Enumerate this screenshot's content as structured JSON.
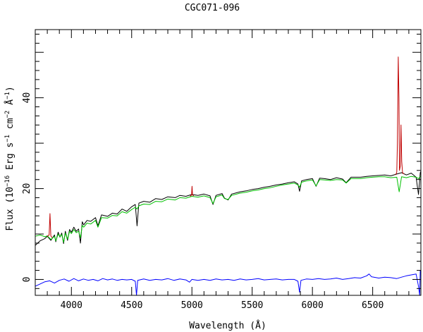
{
  "chart_data": {
    "type": "line",
    "title": "CGC071-096",
    "xlabel": "Wavelength (Å)",
    "ylabel": {
      "prefix": "Flux (10",
      "exp1": "−16",
      "mid1": " Erg s",
      "exp2": "−1",
      "mid2": " cm",
      "exp3": "−2",
      "mid3": " Å",
      "exp4": "−1",
      "suffix": ")"
    },
    "xlim": [
      3700,
      6900
    ],
    "ylim": [
      -3.5,
      55
    ],
    "x_ticks": [
      4000,
      4500,
      5000,
      5500,
      6000,
      6500
    ],
    "y_ticks": [
      0,
      20,
      40
    ],
    "series": [
      {
        "color": "#000000",
        "points": [
          [
            3700,
            7.5
          ],
          [
            3740,
            8.5
          ],
          [
            3780,
            9.0
          ],
          [
            3800,
            9.5
          ],
          [
            3830,
            8.6
          ],
          [
            3860,
            9.8
          ],
          [
            3870,
            8.3
          ],
          [
            3890,
            10.4
          ],
          [
            3905,
            9.3
          ],
          [
            3920,
            10.2
          ],
          [
            3935,
            7.9
          ],
          [
            3950,
            10.6
          ],
          [
            3968,
            8.6
          ],
          [
            3985,
            11.0
          ],
          [
            4000,
            10.4
          ],
          [
            4020,
            11.5
          ],
          [
            4040,
            10.6
          ],
          [
            4060,
            11.1
          ],
          [
            4075,
            8.0
          ],
          [
            4090,
            12.7
          ],
          [
            4102,
            12.0
          ],
          [
            4130,
            13.0
          ],
          [
            4160,
            12.8
          ],
          [
            4200,
            13.6
          ],
          [
            4220,
            11.8
          ],
          [
            4250,
            14.2
          ],
          [
            4300,
            13.9
          ],
          [
            4340,
            14.6
          ],
          [
            4380,
            14.4
          ],
          [
            4420,
            15.5
          ],
          [
            4460,
            15.0
          ],
          [
            4500,
            16.0
          ],
          [
            4530,
            16.5
          ],
          [
            4545,
            11.8
          ],
          [
            4560,
            16.8
          ],
          [
            4600,
            17.2
          ],
          [
            4650,
            17.0
          ],
          [
            4700,
            17.8
          ],
          [
            4750,
            17.6
          ],
          [
            4800,
            18.2
          ],
          [
            4861,
            18.0
          ],
          [
            4900,
            18.5
          ],
          [
            4950,
            18.3
          ],
          [
            5000,
            18.7
          ],
          [
            5050,
            18.5
          ],
          [
            5100,
            18.8
          ],
          [
            5150,
            18.4
          ],
          [
            5175,
            16.5
          ],
          [
            5200,
            18.5
          ],
          [
            5250,
            18.9
          ],
          [
            5270,
            17.9
          ],
          [
            5300,
            17.5
          ],
          [
            5330,
            18.8
          ],
          [
            5400,
            19.3
          ],
          [
            5450,
            19.5
          ],
          [
            5500,
            19.8
          ],
          [
            5550,
            20.0
          ],
          [
            5600,
            20.3
          ],
          [
            5650,
            20.5
          ],
          [
            5700,
            20.8
          ],
          [
            5750,
            21.0
          ],
          [
            5800,
            21.3
          ],
          [
            5850,
            21.5
          ],
          [
            5880,
            21.0
          ],
          [
            5893,
            19.4
          ],
          [
            5910,
            21.7
          ],
          [
            5950,
            22.0
          ],
          [
            6000,
            22.2
          ],
          [
            6030,
            20.5
          ],
          [
            6060,
            22.3
          ],
          [
            6100,
            22.2
          ],
          [
            6150,
            22.0
          ],
          [
            6200,
            22.4
          ],
          [
            6250,
            22.1
          ],
          [
            6280,
            21.3
          ],
          [
            6320,
            22.5
          ],
          [
            6400,
            22.5
          ],
          [
            6450,
            22.7
          ],
          [
            6500,
            22.8
          ],
          [
            6550,
            22.9
          ],
          [
            6600,
            23.0
          ],
          [
            6650,
            22.8
          ],
          [
            6700,
            23.2
          ],
          [
            6740,
            23.5
          ],
          [
            6780,
            23.0
          ],
          [
            6820,
            23.4
          ],
          [
            6860,
            22.5
          ],
          [
            6880,
            18.7
          ],
          [
            6895,
            23.5
          ],
          [
            6900,
            23.8
          ]
        ]
      },
      {
        "color": "#00c000",
        "points": [
          [
            3700,
            9.5
          ],
          [
            3740,
            9.8
          ],
          [
            3780,
            9.4
          ],
          [
            3800,
            9.6
          ],
          [
            3830,
            8.8
          ],
          [
            3860,
            9.5
          ],
          [
            3870,
            8.5
          ],
          [
            3890,
            10.0
          ],
          [
            3905,
            9.4
          ],
          [
            3920,
            9.9
          ],
          [
            3935,
            8.2
          ],
          [
            3950,
            10.2
          ],
          [
            3968,
            8.9
          ],
          [
            3985,
            10.6
          ],
          [
            4000,
            10.1
          ],
          [
            4020,
            11.0
          ],
          [
            4040,
            10.3
          ],
          [
            4060,
            10.6
          ],
          [
            4075,
            9.2
          ],
          [
            4090,
            11.9
          ],
          [
            4102,
            11.5
          ],
          [
            4130,
            12.4
          ],
          [
            4160,
            12.2
          ],
          [
            4200,
            13.0
          ],
          [
            4220,
            11.5
          ],
          [
            4250,
            13.6
          ],
          [
            4300,
            13.5
          ],
          [
            4340,
            14.1
          ],
          [
            4380,
            14.0
          ],
          [
            4420,
            14.9
          ],
          [
            4460,
            14.6
          ],
          [
            4500,
            15.4
          ],
          [
            4530,
            15.9
          ],
          [
            4545,
            15.5
          ],
          [
            4560,
            16.2
          ],
          [
            4600,
            16.6
          ],
          [
            4650,
            16.5
          ],
          [
            4700,
            17.2
          ],
          [
            4750,
            17.1
          ],
          [
            4800,
            17.7
          ],
          [
            4861,
            17.5
          ],
          [
            4900,
            18.0
          ],
          [
            4950,
            17.9
          ],
          [
            5000,
            18.3
          ],
          [
            5050,
            18.1
          ],
          [
            5100,
            18.4
          ],
          [
            5150,
            18.0
          ],
          [
            5175,
            16.7
          ],
          [
            5200,
            18.2
          ],
          [
            5250,
            18.6
          ],
          [
            5270,
            17.8
          ],
          [
            5300,
            17.6
          ],
          [
            5330,
            18.5
          ],
          [
            5400,
            19.0
          ],
          [
            5450,
            19.2
          ],
          [
            5500,
            19.5
          ],
          [
            5550,
            19.7
          ],
          [
            5600,
            20.0
          ],
          [
            5650,
            20.2
          ],
          [
            5700,
            20.5
          ],
          [
            5750,
            20.8
          ],
          [
            5800,
            21.0
          ],
          [
            5850,
            21.2
          ],
          [
            5880,
            20.8
          ],
          [
            5893,
            20.3
          ],
          [
            5910,
            21.4
          ],
          [
            5950,
            21.7
          ],
          [
            6000,
            21.9
          ],
          [
            6030,
            20.6
          ],
          [
            6060,
            22.0
          ],
          [
            6100,
            21.9
          ],
          [
            6150,
            21.8
          ],
          [
            6200,
            22.0
          ],
          [
            6250,
            21.9
          ],
          [
            6280,
            21.2
          ],
          [
            6320,
            22.2
          ],
          [
            6400,
            22.2
          ],
          [
            6450,
            22.4
          ],
          [
            6500,
            22.5
          ],
          [
            6550,
            22.6
          ],
          [
            6600,
            22.6
          ],
          [
            6650,
            22.4
          ],
          [
            6700,
            22.5
          ],
          [
            6720,
            19.3
          ],
          [
            6740,
            22.6
          ],
          [
            6780,
            22.4
          ],
          [
            6820,
            22.7
          ],
          [
            6860,
            22.5
          ],
          [
            6880,
            22.2
          ],
          [
            6895,
            22.6
          ],
          [
            6900,
            22.7
          ]
        ]
      },
      {
        "color": "#c00000",
        "points": [
          [
            3800,
            9.5
          ],
          [
            3815,
            9.8
          ],
          [
            3822,
            14.5
          ],
          [
            3829,
            9.6
          ],
          [
            3840,
            9.2
          ]
        ],
        "gap_after": true
      },
      {
        "color": "#c00000",
        "points": [
          [
            4985,
            18.3
          ],
          [
            4997,
            18.6
          ],
          [
            5001,
            20.5
          ],
          [
            5005,
            18.6
          ],
          [
            5015,
            18.4
          ]
        ]
      },
      {
        "color": "#c00000",
        "points": [
          [
            6690,
            23.0
          ],
          [
            6700,
            23.6
          ],
          [
            6705,
            30.0
          ],
          [
            6712,
            49.0
          ],
          [
            6718,
            40.0
          ],
          [
            6722,
            24.0
          ],
          [
            6730,
            25.0
          ],
          [
            6735,
            34.0
          ],
          [
            6741,
            26.0
          ],
          [
            6748,
            23.5
          ],
          [
            6760,
            23.2
          ]
        ]
      },
      {
        "color": "#0000ff",
        "points": [
          [
            3700,
            -1.5
          ],
          [
            3740,
            -1.0
          ],
          [
            3780,
            -0.5
          ],
          [
            3820,
            -0.3
          ],
          [
            3860,
            -0.8
          ],
          [
            3900,
            -0.2
          ],
          [
            3940,
            0.1
          ],
          [
            3980,
            -0.4
          ],
          [
            4020,
            0.2
          ],
          [
            4060,
            -0.3
          ],
          [
            4100,
            0.1
          ],
          [
            4140,
            -0.2
          ],
          [
            4180,
            0.0
          ],
          [
            4220,
            -0.3
          ],
          [
            4260,
            0.2
          ],
          [
            4300,
            -0.1
          ],
          [
            4340,
            0.1
          ],
          [
            4380,
            -0.2
          ],
          [
            4420,
            0.0
          ],
          [
            4460,
            -0.1
          ],
          [
            4500,
            0.0
          ],
          [
            4530,
            -0.4
          ],
          [
            4540,
            -3.5
          ],
          [
            4550,
            -0.2
          ],
          [
            4600,
            0.1
          ],
          [
            4650,
            -0.2
          ],
          [
            4700,
            0.0
          ],
          [
            4750,
            -0.1
          ],
          [
            4800,
            0.2
          ],
          [
            4850,
            -0.2
          ],
          [
            4900,
            0.1
          ],
          [
            4950,
            -0.1
          ],
          [
            4980,
            -0.6
          ],
          [
            5000,
            0.0
          ],
          [
            5050,
            -0.2
          ],
          [
            5100,
            0.0
          ],
          [
            5150,
            -0.2
          ],
          [
            5200,
            0.1
          ],
          [
            5250,
            -0.1
          ],
          [
            5300,
            0.0
          ],
          [
            5350,
            -0.2
          ],
          [
            5400,
            0.1
          ],
          [
            5450,
            -0.1
          ],
          [
            5500,
            0.0
          ],
          [
            5550,
            0.2
          ],
          [
            5600,
            -0.1
          ],
          [
            5650,
            0.0
          ],
          [
            5700,
            0.1
          ],
          [
            5750,
            -0.1
          ],
          [
            5800,
            0.0
          ],
          [
            5850,
            0.0
          ],
          [
            5880,
            -0.4
          ],
          [
            5893,
            -2.8
          ],
          [
            5905,
            -0.2
          ],
          [
            5950,
            0.1
          ],
          [
            6000,
            0.0
          ],
          [
            6050,
            0.2
          ],
          [
            6100,
            0.0
          ],
          [
            6150,
            0.1
          ],
          [
            6200,
            0.3
          ],
          [
            6250,
            0.0
          ],
          [
            6300,
            0.2
          ],
          [
            6350,
            0.4
          ],
          [
            6400,
            0.3
          ],
          [
            6450,
            0.8
          ],
          [
            6470,
            1.2
          ],
          [
            6490,
            0.6
          ],
          [
            6550,
            0.3
          ],
          [
            6600,
            0.5
          ],
          [
            6650,
            0.4
          ],
          [
            6700,
            0.2
          ],
          [
            6740,
            0.5
          ],
          [
            6780,
            0.8
          ],
          [
            6820,
            1.0
          ],
          [
            6860,
            1.2
          ],
          [
            6880,
            -1.5
          ],
          [
            6890,
            -3.5
          ],
          [
            6895,
            2.0
          ],
          [
            6900,
            1.5
          ]
        ]
      }
    ]
  }
}
